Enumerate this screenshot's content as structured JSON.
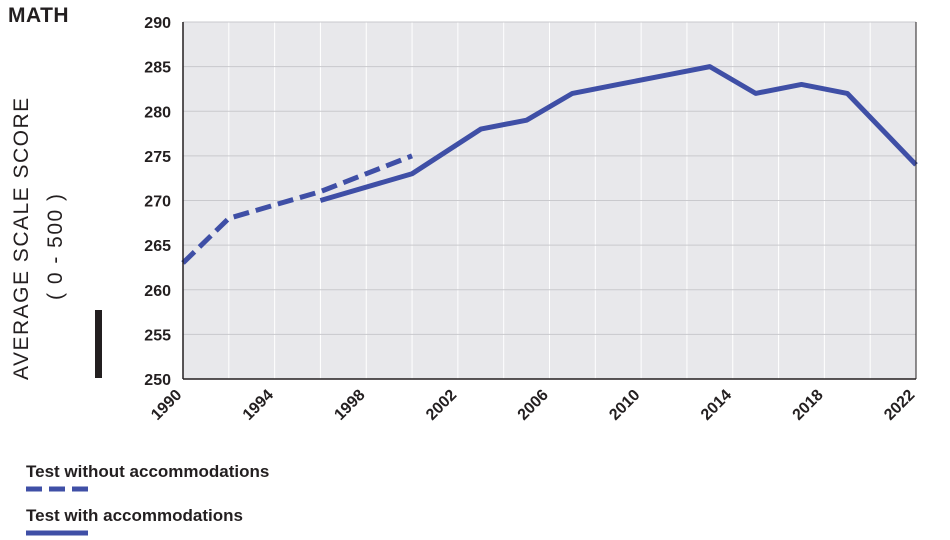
{
  "page": {
    "title": "MATH"
  },
  "chart_data": {
    "type": "line",
    "title": "",
    "ylabel": "AVERAGE SCALE SCORE",
    "ylabel_sub": "( 0 - 500 )",
    "xlabel": "",
    "xlim": [
      1990,
      2022
    ],
    "ylim": [
      250,
      290
    ],
    "grid": true,
    "x_ticks": [
      1990,
      1994,
      1998,
      2002,
      2006,
      2010,
      2014,
      2018,
      2022
    ],
    "y_ticks": [
      250,
      255,
      260,
      265,
      270,
      275,
      280,
      285,
      290
    ],
    "series": [
      {
        "name": "Test without accommodations",
        "style": "dashed",
        "color": "#3f4fa6",
        "x": [
          1990,
          1992,
          1996,
          2000
        ],
        "values": [
          263,
          268,
          271,
          275
        ]
      },
      {
        "name": "Test with accommodations",
        "style": "solid",
        "color": "#3f4fa6",
        "x": [
          1996,
          2000,
          2003,
          2005,
          2007,
          2009,
          2011,
          2013,
          2015,
          2017,
          2019,
          2022
        ],
        "values": [
          270,
          273,
          278,
          279,
          282,
          283,
          284,
          285,
          282,
          283,
          282,
          274
        ]
      }
    ]
  }
}
